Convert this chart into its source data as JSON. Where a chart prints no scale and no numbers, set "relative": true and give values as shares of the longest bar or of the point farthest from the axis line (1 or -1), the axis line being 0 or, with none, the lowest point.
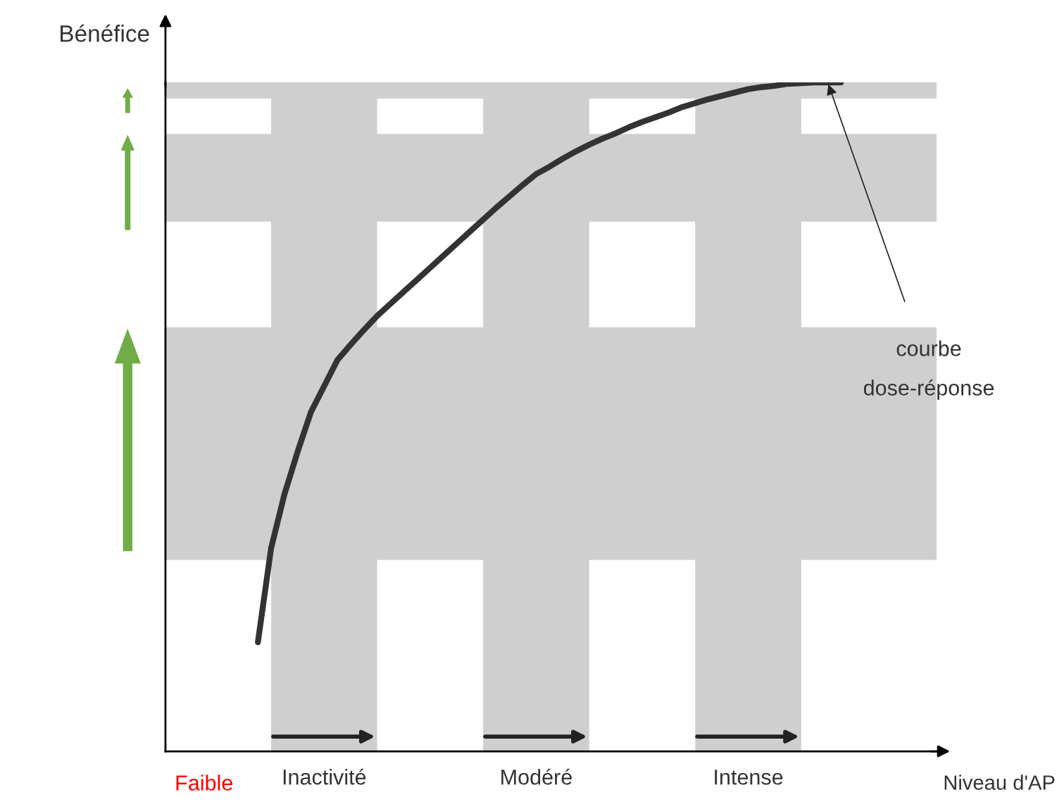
{
  "chart_data": {
    "type": "line",
    "relative": true,
    "xlabel": "Niveau d'AP",
    "ylabel": "Bénéfice",
    "categories": [
      null,
      null,
      null,
      null,
      null,
      "Inactivité",
      null,
      null,
      null,
      null,
      null,
      null,
      null,
      null,
      null,
      null,
      null,
      null,
      null,
      null,
      null,
      "Modéré",
      null,
      null,
      null,
      null,
      null,
      null,
      null,
      null,
      null,
      null,
      null,
      null,
      null,
      null,
      null,
      "Intense",
      null,
      null,
      null,
      null,
      null,
      null,
      null
    ],
    "series": [
      {
        "color": "#333333",
        "values": [
          0.163,
          0.304,
          0.384,
          0.448,
          0.507,
          0.546,
          0.585,
          0.608,
          0.63,
          0.651,
          0.669,
          0.687,
          0.705,
          0.723,
          0.741,
          0.759,
          0.777,
          0.795,
          0.813,
          0.83,
          0.847,
          0.863,
          0.874,
          0.886,
          0.897,
          0.907,
          0.916,
          0.924,
          0.933,
          0.941,
          0.948,
          0.955,
          0.963,
          0.969,
          0.975,
          0.98,
          0.985,
          0.99,
          0.993,
          0.995,
          0.998,
          0.999,
          1.0,
          1.0,
          1.0
        ]
      }
    ],
    "bands": [
      {
        "axis": "y",
        "from": 0.286,
        "to": 0.634,
        "color": "#cfcfcf"
      },
      {
        "axis": "y",
        "from": 0.792,
        "to": 0.923,
        "color": "#cfcfcf"
      },
      {
        "axis": "y",
        "from": 0.976,
        "to": 1.0,
        "color": "#cfcfcf"
      }
    ],
    "annotations": [
      "courbe\ndose-réponse",
      "Faible"
    ],
    "tick_labels": "x",
    "line_style": "solid",
    "marker": "none"
  }
}
